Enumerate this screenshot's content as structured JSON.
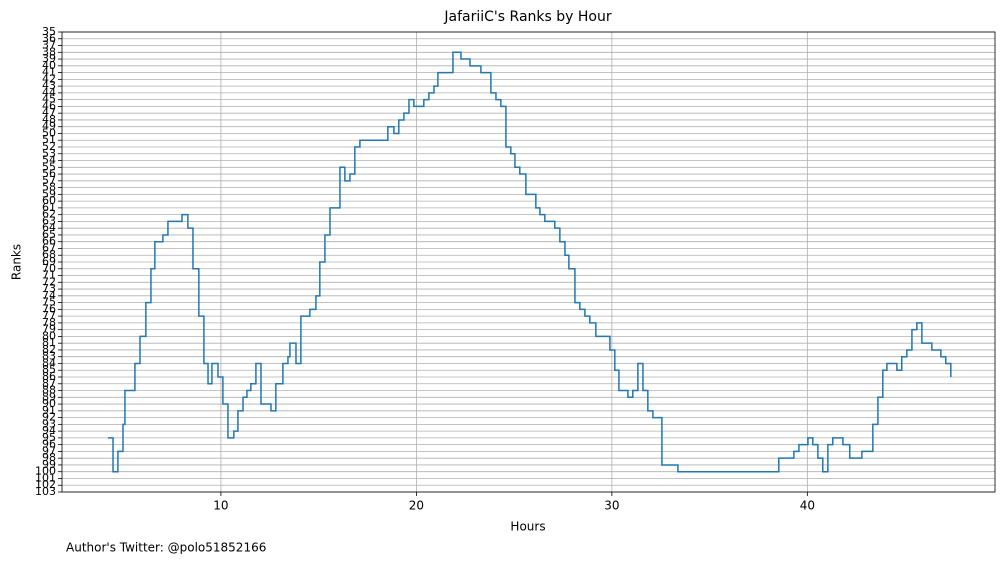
{
  "chart_data": {
    "type": "step",
    "title": "JafariiC's Ranks by Hour",
    "xlabel": "Hours",
    "ylabel": "Ranks",
    "footnote": "Author's Twitter: @polo51852166",
    "color": "#1f77b4",
    "grid": true,
    "x": [
      4.22,
      4.48,
      4.73,
      4.99,
      5.09,
      5.6,
      5.86,
      6.16,
      6.42,
      6.62,
      7.03,
      7.29,
      8.01,
      8.31,
      8.57,
      8.87,
      9.13,
      9.34,
      9.54,
      9.85,
      10.1,
      10.36,
      10.66,
      10.87,
      11.13,
      11.33,
      11.53,
      11.79,
      12.05,
      12.56,
      12.81,
      13.17,
      13.43,
      13.53,
      13.84,
      14.09,
      14.55,
      14.86,
      15.06,
      15.32,
      15.58,
      16.09,
      16.34,
      16.6,
      16.85,
      17.11,
      18.54,
      18.85,
      19.1,
      19.36,
      19.62,
      19.87,
      20.38,
      20.64,
      20.9,
      21.1,
      21.87,
      22.28,
      22.74,
      23.3,
      23.81,
      24.07,
      24.32,
      24.58,
      24.83,
      25.04,
      25.29,
      25.6,
      26.11,
      26.32,
      26.57,
      27.08,
      27.34,
      27.6,
      27.8,
      28.11,
      28.36,
      28.62,
      28.87,
      29.18,
      29.9,
      30.15,
      30.36,
      30.82,
      31.07,
      31.33,
      31.59,
      31.84,
      32.1,
      32.56,
      33.38,
      38.54,
      39.31,
      39.57,
      40.03,
      40.28,
      40.54,
      40.79,
      41.05,
      41.3,
      41.82,
      42.17,
      42.79,
      43.35,
      43.61,
      43.86,
      44.07,
      44.58,
      44.83,
      45.09,
      45.35,
      45.6,
      45.86,
      46.37,
      46.83,
      47.08,
      47.34
    ],
    "values": [
      95,
      100,
      97,
      93,
      88,
      84,
      80,
      75,
      70,
      66,
      65,
      63,
      62,
      64,
      70,
      77,
      84,
      87,
      84,
      86,
      90,
      95,
      94,
      91,
      89,
      88,
      87,
      84,
      90,
      91,
      87,
      84,
      83,
      81,
      84,
      77,
      76,
      74,
      69,
      65,
      61,
      55,
      57,
      56,
      52,
      51,
      49,
      50,
      48,
      47,
      45,
      46,
      45,
      44,
      43,
      41,
      38,
      39,
      40,
      41,
      44,
      45,
      46,
      52,
      53,
      55,
      56,
      59,
      61,
      62,
      63,
      64,
      66,
      68,
      70,
      75,
      76,
      77,
      78,
      80,
      82,
      85,
      88,
      89,
      88,
      84,
      88,
      91,
      92,
      99,
      100,
      98,
      97,
      96,
      95,
      96,
      98,
      100,
      96,
      95,
      96,
      98,
      97,
      93,
      89,
      85,
      84,
      85,
      83,
      82,
      79,
      78,
      81,
      82,
      83,
      84,
      86
    ],
    "xlim": [
      1.87,
      49.6
    ],
    "xticks": [
      10,
      20,
      30,
      40
    ],
    "ylim": [
      103,
      35
    ],
    "yticks": [
      35,
      36,
      37,
      38,
      39,
      40,
      41,
      42,
      43,
      44,
      45,
      46,
      47,
      48,
      49,
      50,
      51,
      52,
      53,
      54,
      55,
      56,
      57,
      58,
      59,
      60,
      61,
      62,
      63,
      64,
      65,
      66,
      67,
      68,
      69,
      70,
      71,
      72,
      73,
      74,
      75,
      76,
      77,
      78,
      79,
      80,
      81,
      82,
      83,
      84,
      85,
      86,
      87,
      88,
      89,
      90,
      91,
      92,
      93,
      94,
      95,
      96,
      97,
      98,
      99,
      100,
      101,
      102,
      103
    ]
  }
}
